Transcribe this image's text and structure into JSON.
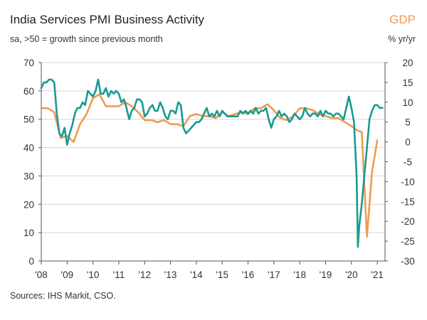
{
  "chart_data": {
    "type": "line",
    "title": "India Services PMI Business Activity",
    "subtitle": "sa, >50 = growth since previous month",
    "right_axis_title": "GDP",
    "right_axis_subtitle": "% yr/yr",
    "source": "Sources: IHS Markit, CSO.",
    "x_tick_labels": [
      "'08",
      "'09",
      "'10",
      "'11",
      "'12",
      "'13",
      "'14",
      "'15",
      "'16",
      "'17",
      "'18",
      "'19",
      "'20",
      "'21"
    ],
    "x_range": [
      2008.0,
      2021.3
    ],
    "left_axis": {
      "ylim": [
        0,
        70
      ],
      "ticks": [
        0,
        10,
        20,
        30,
        40,
        50,
        60,
        70
      ]
    },
    "right_axis": {
      "ylim": [
        -30,
        20
      ],
      "ticks": [
        20,
        15,
        10,
        5,
        0,
        -5,
        -10,
        -15,
        -20,
        -25,
        -30
      ]
    },
    "grid": true,
    "series": [
      {
        "axis": "left",
        "color": "#1a9a91",
        "x": [
          2008.0,
          2008.1,
          2008.2,
          2008.3,
          2008.4,
          2008.5,
          2008.6,
          2008.7,
          2008.8,
          2008.9,
          2009.0,
          2009.1,
          2009.2,
          2009.3,
          2009.4,
          2009.5,
          2009.6,
          2009.7,
          2009.8,
          2009.9,
          2010.0,
          2010.1,
          2010.2,
          2010.3,
          2010.4,
          2010.5,
          2010.6,
          2010.7,
          2010.8,
          2010.9,
          2011.0,
          2011.1,
          2011.2,
          2011.3,
          2011.4,
          2011.5,
          2011.6,
          2011.7,
          2011.8,
          2011.9,
          2012.0,
          2012.1,
          2012.2,
          2012.3,
          2012.4,
          2012.5,
          2012.6,
          2012.7,
          2012.8,
          2012.9,
          2013.0,
          2013.1,
          2013.2,
          2013.3,
          2013.4,
          2013.5,
          2013.6,
          2013.7,
          2013.8,
          2013.9,
          2014.0,
          2014.1,
          2014.2,
          2014.3,
          2014.4,
          2014.5,
          2014.6,
          2014.7,
          2014.8,
          2014.9,
          2015.0,
          2015.1,
          2015.2,
          2015.3,
          2015.4,
          2015.5,
          2015.6,
          2015.7,
          2015.8,
          2015.9,
          2016.0,
          2016.1,
          2016.2,
          2016.3,
          2016.4,
          2016.5,
          2016.6,
          2016.7,
          2016.8,
          2016.9,
          2017.0,
          2017.1,
          2017.2,
          2017.3,
          2017.4,
          2017.5,
          2017.6,
          2017.7,
          2017.8,
          2017.9,
          2018.0,
          2018.1,
          2018.2,
          2018.3,
          2018.4,
          2018.5,
          2018.6,
          2018.7,
          2018.8,
          2018.9,
          2019.0,
          2019.1,
          2019.2,
          2019.3,
          2019.4,
          2019.5,
          2019.6,
          2019.7,
          2019.8,
          2019.9,
          2020.0,
          2020.1,
          2020.2,
          2020.25,
          2020.3,
          2020.4,
          2020.5,
          2020.6,
          2020.7,
          2020.8,
          2020.9,
          2021.0,
          2021.1,
          2021.2
        ],
        "values": [
          61,
          63,
          63,
          64,
          64,
          63,
          52,
          45,
          44,
          47,
          41,
          45,
          48,
          52,
          54,
          54,
          56,
          55,
          60,
          59,
          58,
          60,
          64,
          59,
          59,
          61,
          58,
          60,
          59,
          60,
          59,
          56,
          57,
          54,
          50,
          53,
          54,
          57,
          57,
          56,
          51,
          52,
          54,
          55,
          53,
          53,
          56,
          54,
          51,
          50,
          53,
          53,
          52,
          56,
          55,
          47,
          45,
          46,
          47,
          48,
          49,
          49,
          50,
          52,
          54,
          51,
          52,
          51,
          53,
          51,
          53,
          52,
          51,
          51,
          51,
          51,
          51,
          53,
          52,
          53,
          52,
          53,
          52,
          54,
          52,
          53,
          53,
          54,
          50,
          47,
          50,
          51,
          53,
          51,
          52,
          51,
          49,
          50,
          52,
          51,
          50,
          51,
          54,
          52,
          51,
          52,
          52,
          51,
          53,
          51,
          53,
          52,
          52,
          51,
          52,
          52,
          51,
          50,
          54,
          58,
          54,
          49,
          30,
          5,
          12,
          20,
          30,
          40,
          50,
          53,
          55,
          55,
          54,
          54
        ]
      },
      {
        "axis": "right",
        "color": "#ef9b4f",
        "x": [
          2008.0,
          2008.25,
          2008.5,
          2008.75,
          2009.0,
          2009.25,
          2009.5,
          2009.75,
          2010.0,
          2010.25,
          2010.5,
          2010.75,
          2011.0,
          2011.25,
          2011.5,
          2011.75,
          2012.0,
          2012.25,
          2012.5,
          2012.75,
          2013.0,
          2013.25,
          2013.5,
          2013.75,
          2014.0,
          2014.25,
          2014.5,
          2014.75,
          2015.0,
          2015.25,
          2015.5,
          2015.75,
          2016.0,
          2016.25,
          2016.5,
          2016.75,
          2017.0,
          2017.25,
          2017.5,
          2017.75,
          2018.0,
          2018.25,
          2018.5,
          2018.75,
          2019.0,
          2019.25,
          2019.5,
          2019.75,
          2020.0,
          2020.2,
          2020.4,
          2020.6,
          2020.8,
          2021.0
        ],
        "values": [
          8.5,
          8.5,
          7.5,
          1,
          1.5,
          0,
          4.5,
          7,
          11,
          12,
          9,
          9,
          9,
          10,
          9,
          7.5,
          5.5,
          5.5,
          5,
          5.5,
          4.5,
          4.5,
          4,
          6.5,
          7,
          6.5,
          6.5,
          6,
          7.5,
          6.5,
          7,
          7.5,
          7,
          8.5,
          8.5,
          9.5,
          8,
          6,
          5.5,
          6.5,
          8.5,
          8.5,
          8,
          7,
          6.5,
          6,
          6,
          5,
          4,
          3,
          2.5,
          -23.9,
          -7.5,
          0.4
        ]
      }
    ]
  }
}
